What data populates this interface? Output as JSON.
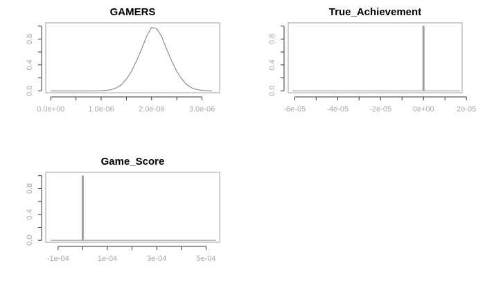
{
  "colors": {
    "line": "#a0a0a0",
    "curve": "#7a7a7a",
    "frame": "#a0a0a0",
    "tick_label": "#a8a8a8",
    "spike": "#a0a0a0"
  },
  "chart_data": [
    {
      "type": "line",
      "title": "GAMERS",
      "xlabel": "",
      "ylabel": "",
      "xlim": [
        -1e-07,
        3.35e-06
      ],
      "ylim": [
        -0.03,
        1.05
      ],
      "x_ticks": [
        0,
        5e-07,
        1e-06,
        1.5e-06,
        2e-06,
        2.5e-06,
        3e-06
      ],
      "x_tick_labels": [
        "0.0e+00",
        "",
        "1.0e-06",
        "",
        "2.0e-06",
        "",
        "3.0e-06"
      ],
      "y_ticks": [
        0.0,
        0.2,
        0.4,
        0.6,
        0.8,
        1.0
      ],
      "y_tick_labels": [
        "0.0",
        "",
        "0.4",
        "",
        "0.8",
        ""
      ],
      "series": [
        {
          "x": [
            0,
            2e-07,
            4e-07,
            6e-07,
            8e-07,
            1e-06,
            1.1e-06,
            1.2e-06,
            1.3e-06,
            1.4e-06,
            1.5e-06,
            1.6e-06,
            1.7e-06,
            1.8e-06,
            1.9e-06,
            2e-06,
            2.1e-06,
            2.2e-06,
            2.3e-06,
            2.4e-06,
            2.5e-06,
            2.6e-06,
            2.7e-06,
            2.8e-06,
            2.9e-06,
            3e-06,
            3.2e-06
          ],
          "y": [
            0.0,
            0.0,
            0.0,
            0.0,
            0.0,
            0.002,
            0.006,
            0.018,
            0.044,
            0.094,
            0.18,
            0.3,
            0.46,
            0.64,
            0.84,
            0.98,
            0.96,
            0.84,
            0.64,
            0.46,
            0.3,
            0.18,
            0.094,
            0.044,
            0.018,
            0.006,
            0.0
          ]
        }
      ]
    },
    {
      "type": "line",
      "title": "True_Achievement",
      "xlabel": "",
      "ylabel": "",
      "xlim": [
        -6.3e-05,
        1.8e-05
      ],
      "ylim": [
        -0.03,
        1.05
      ],
      "x_ticks": [
        -6e-05,
        -5e-05,
        -4e-05,
        -3e-05,
        -2e-05,
        -1e-05,
        0,
        1e-05,
        2e-05
      ],
      "x_tick_labels": [
        "-6e-05",
        "",
        "-4e-05",
        "",
        "-2e-05",
        "",
        "0e+00",
        "",
        "2e-05"
      ],
      "y_ticks": [
        0.0,
        0.2,
        0.4,
        0.6,
        0.8,
        1.0
      ],
      "y_tick_labels": [
        "0.0",
        "",
        "0.4",
        "",
        "0.8",
        ""
      ],
      "series": [
        {
          "x": [
            -6.1e-05,
            -1e-07,
            0,
            1e-07,
            1.7e-05
          ],
          "y": [
            0,
            0,
            1.0,
            0,
            0
          ]
        }
      ]
    },
    {
      "type": "line",
      "title": "Game_Score",
      "xlabel": "",
      "ylabel": "",
      "xlim": [
        -0.00015,
        0.000555
      ],
      "ylim": [
        -0.03,
        1.05
      ],
      "x_ticks": [
        -0.0001,
        0,
        0.0001,
        0.0002,
        0.0003,
        0.0004,
        0.0005
      ],
      "x_tick_labels": [
        "-1e-04",
        "",
        "1e-04",
        "",
        "3e-04",
        "",
        "5e-04"
      ],
      "y_ticks": [
        0.0,
        0.2,
        0.4,
        0.6,
        0.8,
        1.0
      ],
      "y_tick_labels": [
        "0.0",
        "",
        "0.4",
        "",
        "0.8",
        ""
      ],
      "series": [
        {
          "x": [
            -0.00013,
            -1e-06,
            0,
            1e-06,
            0.00054
          ],
          "y": [
            0,
            0,
            1.0,
            0,
            0
          ]
        }
      ]
    }
  ]
}
